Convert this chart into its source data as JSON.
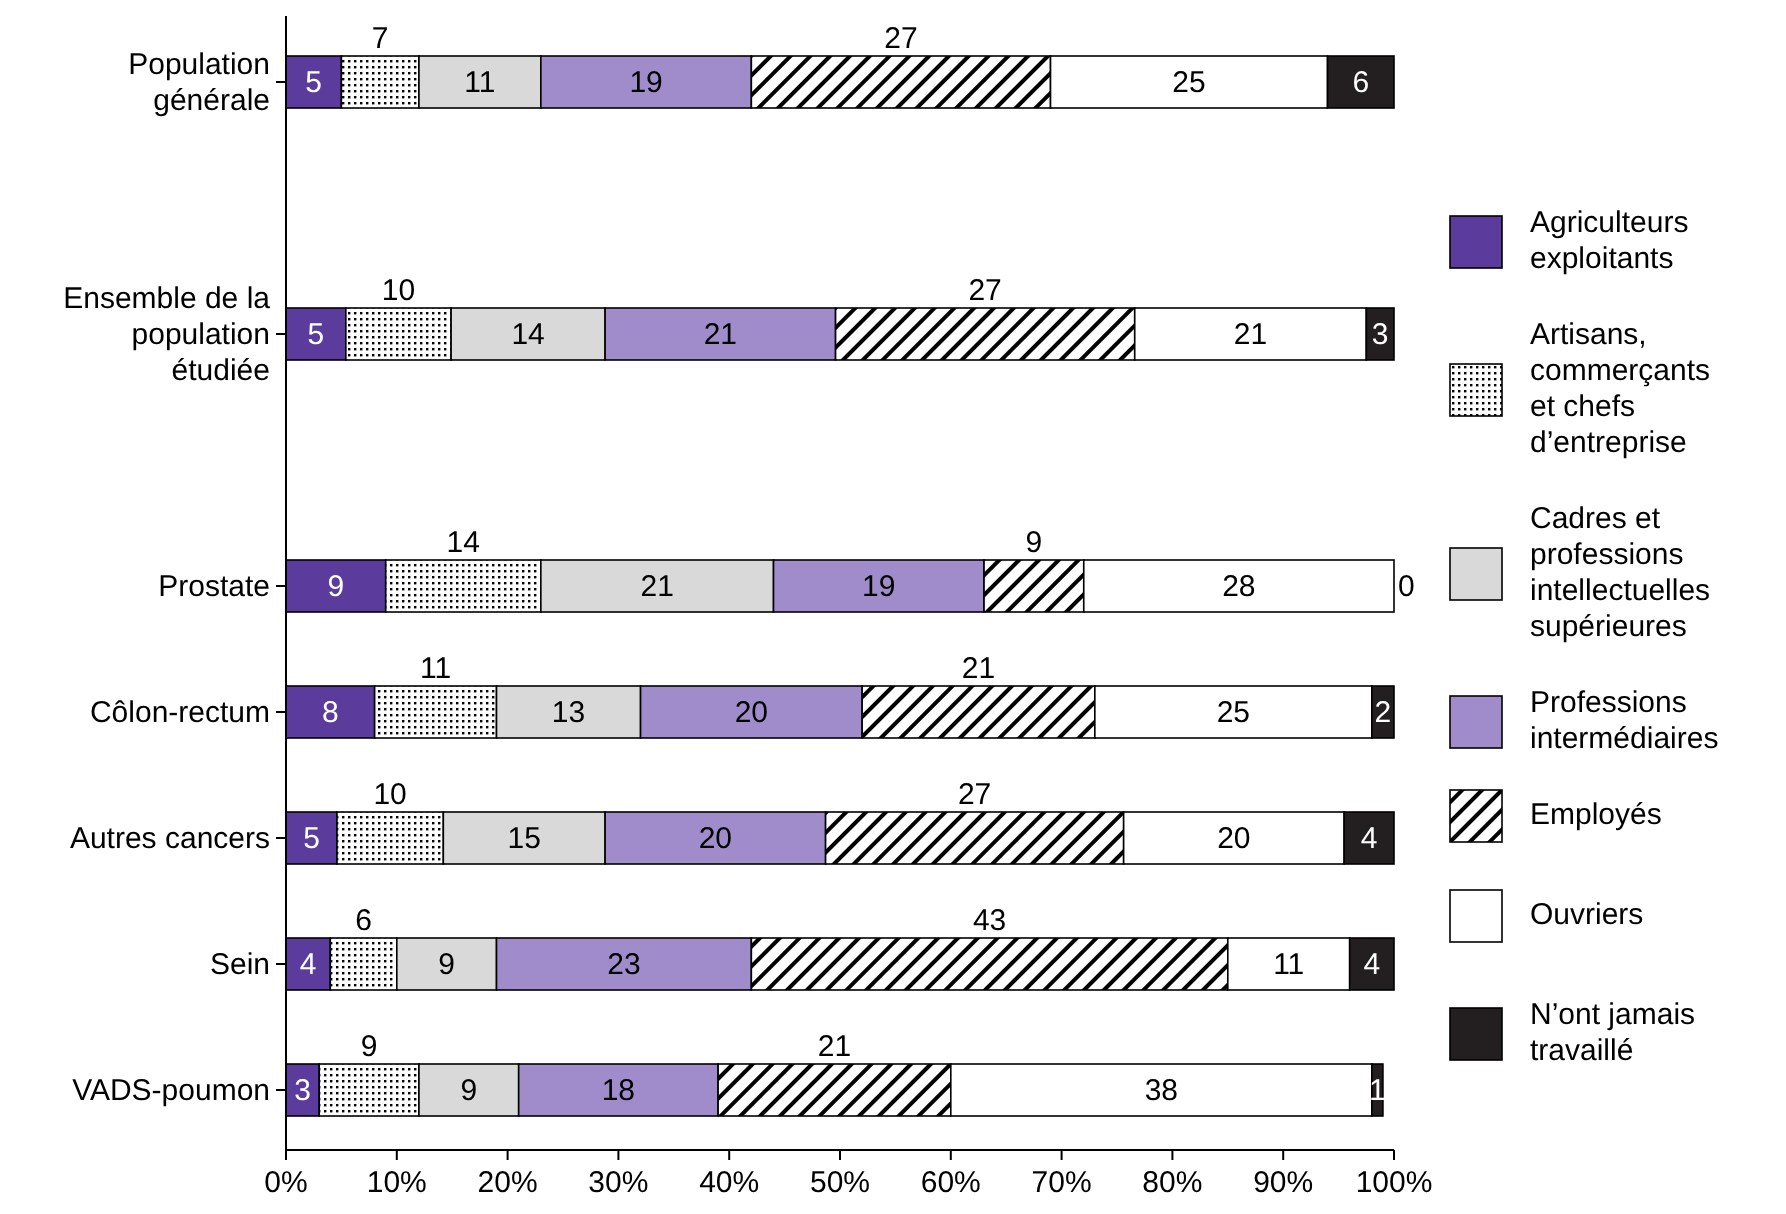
{
  "chart_data": {
    "type": "bar",
    "orientation": "horizontal",
    "stacked": true,
    "legend": "right",
    "grid": false,
    "categories": [
      "Population générale",
      null,
      "Ensemble de la population étudiée",
      null,
      "Prostate",
      "Côlon-rectum",
      "Autres cancers",
      "Sein",
      "VADS-poumon"
    ],
    "xlim": [
      0,
      100
    ],
    "xticks": [
      {
        "value": 0,
        "label": "0%"
      },
      {
        "value": 10,
        "label": "10%"
      },
      {
        "value": 20,
        "label": "20%"
      },
      {
        "value": 30,
        "label": "30%"
      },
      {
        "value": 40,
        "label": "40%"
      },
      {
        "value": 50,
        "label": "50%"
      },
      {
        "value": 60,
        "label": "60%"
      },
      {
        "value": 70,
        "label": "70%"
      },
      {
        "value": 80,
        "label": "80%"
      },
      {
        "value": 90,
        "label": "90%"
      },
      {
        "value": 100,
        "label": "100%"
      }
    ],
    "series": [
      {
        "name": "Agriculteurs exploitants",
        "color": "#5b3c9c",
        "values": [
          5,
          null,
          5.4,
          null,
          9,
          8,
          4.6,
          4,
          3
        ],
        "value_labels": [
          "5",
          null,
          "5",
          null,
          "9",
          "8",
          "5",
          "4",
          "3"
        ]
      },
      {
        "name": "Artisans, commerçants et chefs d’entreprise",
        "color": "#000000",
        "values": [
          7,
          null,
          9.5,
          null,
          14,
          11,
          9.6,
          6,
          9
        ],
        "value_labels": [
          "7",
          null,
          "10",
          null,
          "14",
          "11",
          "10",
          "6",
          "9"
        ]
      },
      {
        "name": "Cadres et professions intellectuelles supérieures",
        "color": "#d9d9d9",
        "values": [
          11,
          null,
          13.9,
          null,
          21,
          13,
          14.6,
          9,
          9
        ],
        "value_labels": [
          "11",
          null,
          "14",
          null,
          "21",
          "13",
          "15",
          "9",
          "9"
        ]
      },
      {
        "name": "Professions intermédiaires",
        "color": "#a08ccb",
        "values": [
          19,
          null,
          20.8,
          null,
          19,
          20,
          19.9,
          23,
          18
        ],
        "value_labels": [
          "19",
          null,
          "21",
          null,
          "19",
          "20",
          "20",
          "23",
          "18"
        ]
      },
      {
        "name": "Employés",
        "color": "#000000",
        "values": [
          27,
          null,
          27,
          null,
          9,
          21,
          26.9,
          43,
          21
        ],
        "value_labels": [
          "27",
          null,
          "27",
          null,
          "9",
          "21",
          "27",
          "43",
          "21"
        ]
      },
      {
        "name": "Ouvriers",
        "color": "#ffffff",
        "values": [
          25,
          null,
          20.9,
          null,
          28,
          25,
          19.9,
          11,
          38
        ],
        "value_labels": [
          "25",
          null,
          "21",
          null,
          "28",
          "25",
          "20",
          "11",
          "38"
        ]
      },
      {
        "name": "N’ont jamais travaillé",
        "color": "#231f20",
        "values": [
          6,
          null,
          2.5,
          null,
          0,
          2,
          4.5,
          4,
          1
        ],
        "value_labels": [
          "6",
          null,
          "3",
          null,
          "0",
          "2",
          "4",
          "4",
          "1"
        ]
      }
    ]
  }
}
